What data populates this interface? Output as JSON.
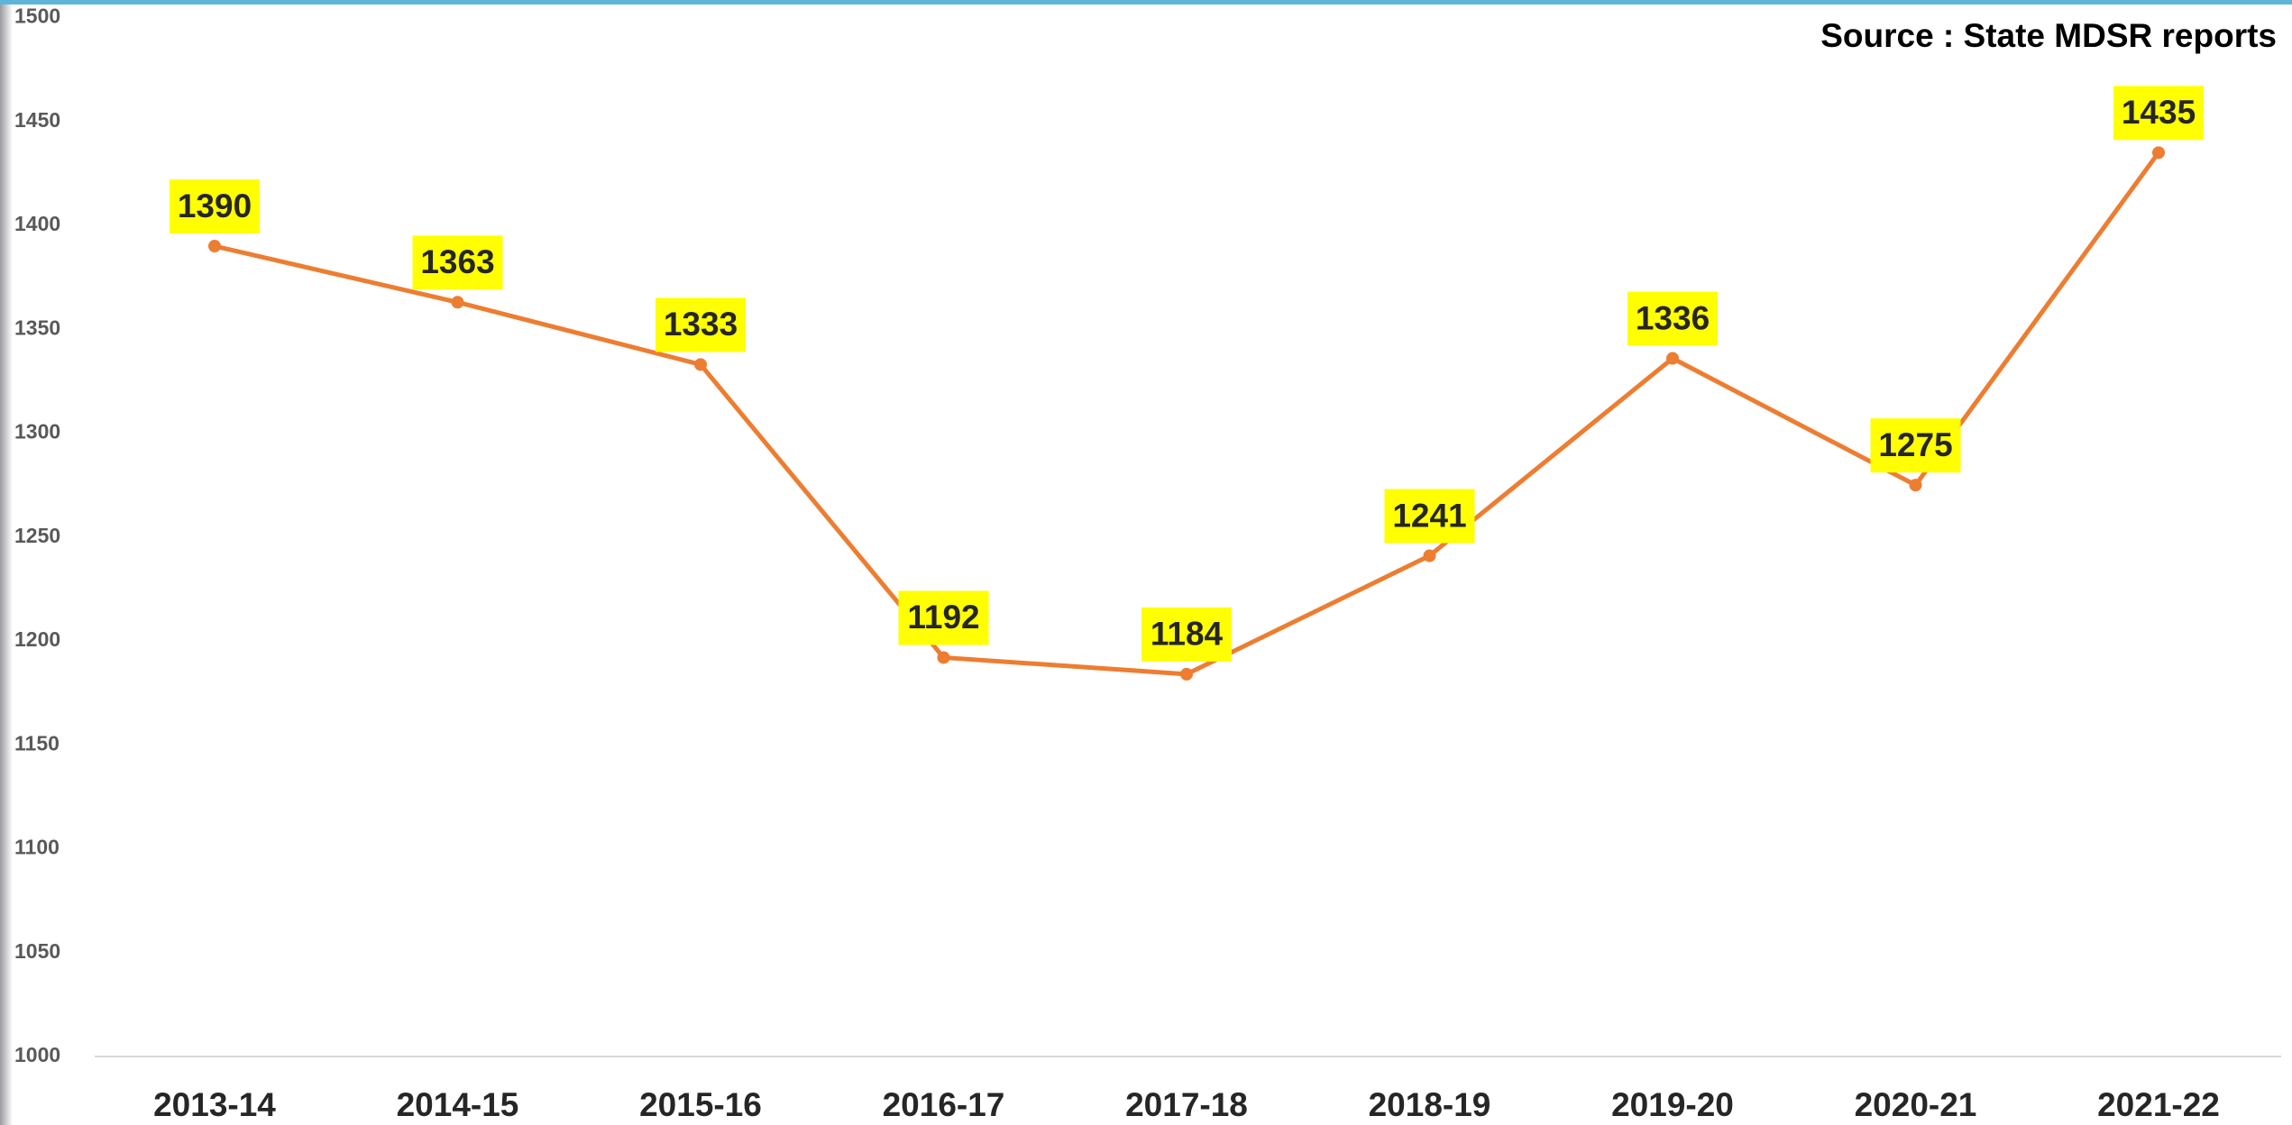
{
  "chart_data": {
    "type": "line",
    "annotation": "Source : State MDSR reports",
    "categories": [
      "2013-14",
      "2014-15",
      "2015-16",
      "2016-17",
      "2017-18",
      "2018-19",
      "2019-20",
      "2020-21",
      "2021-22"
    ],
    "series": [
      {
        "color": "#ed7d31",
        "values": [
          1390,
          1363,
          1333,
          1192,
          1184,
          1241,
          1336,
          1275,
          1435
        ]
      }
    ],
    "ylim": [
      1000,
      1500
    ],
    "yticks": [
      1000,
      1050,
      1100,
      1150,
      1200,
      1250,
      1300,
      1350,
      1400,
      1450,
      1500
    ],
    "grid": false,
    "label_color": "#ffff00"
  }
}
